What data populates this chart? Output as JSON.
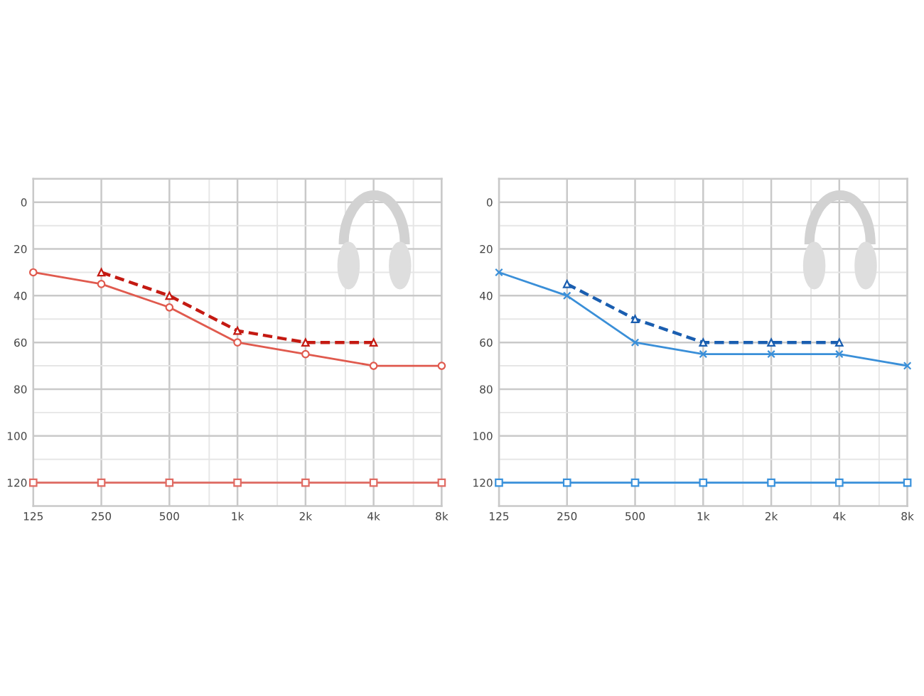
{
  "chart_data": [
    {
      "type": "line",
      "x": [
        125,
        250,
        500,
        1000,
        2000,
        4000,
        8000
      ],
      "log": "x",
      "xlim": [
        125,
        8000
      ],
      "xticks": [
        125,
        250,
        500,
        {
          "value": 750,
          "label": null
        },
        {
          "value": 1000,
          "label": "1k"
        },
        {
          "value": 1500,
          "label": null
        },
        {
          "value": 2000,
          "label": "2k"
        },
        {
          "value": 3000,
          "label": null
        },
        {
          "value": 4000,
          "label": "4k"
        },
        {
          "value": 6000,
          "label": null
        },
        {
          "value": 8000,
          "label": "8k"
        }
      ],
      "ylim": [
        130,
        -10
      ],
      "yticks": [
        0,
        {
          "value": 10,
          "label": null
        },
        20,
        {
          "value": 30,
          "label": null
        },
        40,
        {
          "value": 50,
          "label": null
        },
        60,
        {
          "value": 70,
          "label": null
        },
        80,
        {
          "value": 90,
          "label": null
        },
        100,
        {
          "value": 110,
          "label": null
        },
        120
      ],
      "grid": true,
      "series": [
        {
          "color": "#e05a4e",
          "marker": "circle",
          "line_style": "solid",
          "values": [
            30,
            35,
            45,
            60,
            65,
            70,
            70
          ]
        },
        {
          "color": "#c41a12",
          "marker": "triangle",
          "line_style": "dashed",
          "x": [
            250,
            500,
            1000,
            2000,
            4000
          ],
          "values": [
            30,
            40,
            55,
            60,
            60
          ]
        },
        {
          "color": "#e06b63",
          "marker": "square",
          "line_style": "solid",
          "values": [
            120,
            120,
            120,
            120,
            120,
            120,
            120
          ]
        }
      ]
    },
    {
      "type": "line",
      "x": [
        125,
        250,
        500,
        1000,
        2000,
        4000,
        8000
      ],
      "log": "x",
      "xlim": [
        125,
        8000
      ],
      "xticks": [
        125,
        250,
        500,
        {
          "value": 750,
          "label": null
        },
        {
          "value": 1000,
          "label": "1k"
        },
        {
          "value": 1500,
          "label": null
        },
        {
          "value": 2000,
          "label": "2k"
        },
        {
          "value": 3000,
          "label": null
        },
        {
          "value": 4000,
          "label": "4k"
        },
        {
          "value": 6000,
          "label": null
        },
        {
          "value": 8000,
          "label": "8k"
        }
      ],
      "ylim": [
        130,
        -10
      ],
      "yticks": [
        0,
        {
          "value": 10,
          "label": null
        },
        20,
        {
          "value": 30,
          "label": null
        },
        40,
        {
          "value": 50,
          "label": null
        },
        60,
        {
          "value": 70,
          "label": null
        },
        80,
        {
          "value": 90,
          "label": null
        },
        100,
        {
          "value": 110,
          "label": null
        },
        120
      ],
      "grid": true,
      "series": [
        {
          "color": "#3a8fd8",
          "marker": "cross",
          "line_style": "solid",
          "values": [
            30,
            40,
            60,
            65,
            65,
            65,
            70
          ]
        },
        {
          "color": "#1a5eb0",
          "marker": "triangle",
          "line_style": "dashed",
          "x": [
            250,
            500,
            1000,
            2000,
            4000
          ],
          "values": [
            35,
            50,
            60,
            60,
            60
          ]
        },
        {
          "color": "#3a92dc",
          "marker": "square",
          "line_style": "solid",
          "values": [
            120,
            120,
            120,
            120,
            120,
            120,
            120
          ]
        }
      ]
    }
  ]
}
